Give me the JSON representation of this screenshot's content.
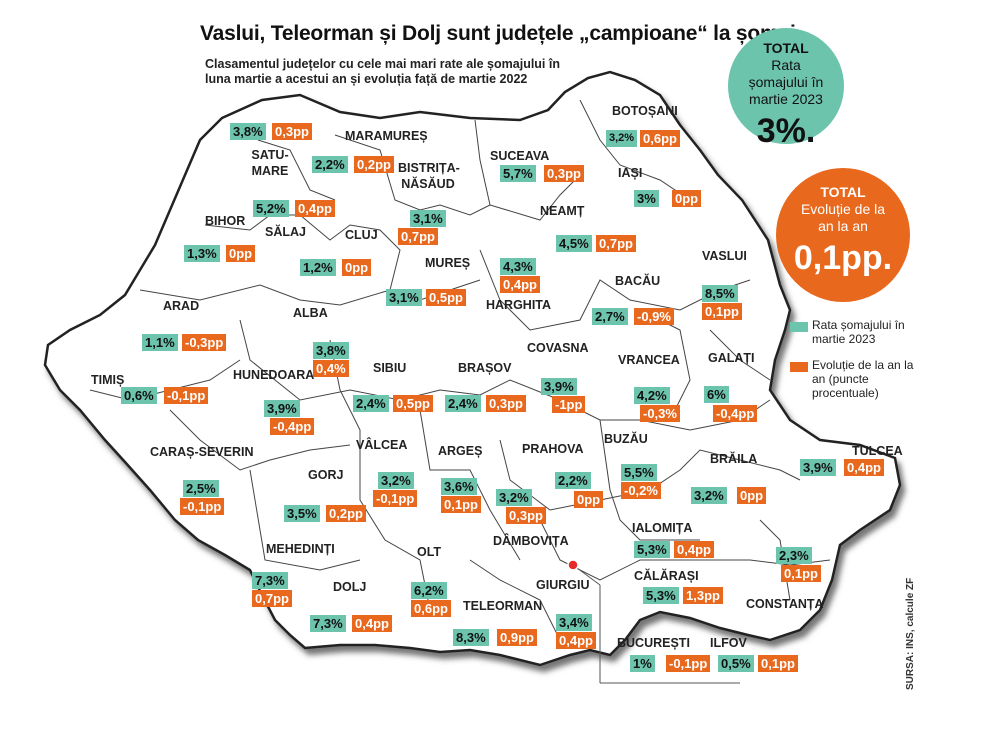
{
  "title": "Vaslui, Teleorman și Dolj sunt județele „campioane“ la șomaj",
  "subtitle": "Clasamentul județelor cu cele mai mari rate ale șomajului în luna martie a acestui an și evoluția față de martie 2022",
  "total_rate": {
    "label": "TOTAL",
    "desc": "Rata șomajului în martie 2023",
    "value": "3%."
  },
  "total_evolution": {
    "label": "TOTAL",
    "desc": "Evoluție de la an la an",
    "value": "0,1pp."
  },
  "legend": {
    "rate": "Rata șomajului în martie 2023",
    "evolution": "Evoluție de la an la an (puncte procentuale)",
    "rate_color": "#6cc4ad",
    "evolution_color": "#e8691e"
  },
  "source": "SURSA: INS, calcule ZF",
  "counties": {
    "satu_mare": {
      "name": "SATU-MARE",
      "rate": "3,8%",
      "change": "0,3pp"
    },
    "maramures": {
      "name": "MARAMUREȘ",
      "rate": "2,2%",
      "change": "0,2pp"
    },
    "botosani": {
      "name": "BOTOȘANI",
      "rate": "3,2%",
      "change": "0,6pp"
    },
    "suceava": {
      "name": "SUCEAVA",
      "rate": "5,7%",
      "change": "0,3pp"
    },
    "bistrita": {
      "name": "BISTRIȚA-NĂSĂUD",
      "rate": "3,1%",
      "change": "0,7pp"
    },
    "iasi": {
      "name": "IAȘI",
      "rate": "3%",
      "change": "0pp"
    },
    "salaj": {
      "name": "SĂLAJ",
      "rate": "5,2%",
      "change": "0,4pp"
    },
    "bihor": {
      "name": "BIHOR",
      "rate": "1,3%",
      "change": "0pp"
    },
    "cluj": {
      "name": "CLUJ",
      "rate": "1,2%",
      "change": "0pp"
    },
    "neamt": {
      "name": "NEAMȚ",
      "rate": "4,5%",
      "change": "0,7pp"
    },
    "mures": {
      "name": "MUREȘ",
      "rate": "3,1%",
      "change": "0,5pp"
    },
    "harghita": {
      "name": "HARGHITA",
      "rate": "4,3%",
      "change": "0,4pp"
    },
    "bacau": {
      "name": "BACĂU",
      "rate": "2,7%",
      "change": "-0,9%"
    },
    "vaslui": {
      "name": "VASLUI",
      "rate": "8,5%",
      "change": "0,1pp"
    },
    "arad": {
      "name": "ARAD",
      "rate": "1,1%",
      "change": "-0,3pp"
    },
    "alba": {
      "name": "ALBA",
      "rate": "3,8%",
      "change": "0,4%"
    },
    "timis": {
      "name": "TIMIȘ",
      "rate": "0,6%",
      "change": "-0,1pp"
    },
    "hunedoara": {
      "name": "HUNEDOARA",
      "rate": "3,9%",
      "change": "-0,4pp"
    },
    "sibiu": {
      "name": "SIBIU",
      "rate": "2,4%",
      "change": "0,5pp"
    },
    "brasov": {
      "name": "BRAȘOV",
      "rate": "2,4%",
      "change": "0,3pp"
    },
    "covasna": {
      "name": "COVASNA",
      "rate": "3,9%",
      "change": "-1pp"
    },
    "vrancea": {
      "name": "VRANCEA",
      "rate": "4,2%",
      "change": "-0,3%"
    },
    "galati": {
      "name": "GALAȚI",
      "rate": "6%",
      "change": "-0,4pp"
    },
    "caras": {
      "name": "CARAȘ-SEVERIN",
      "rate": "2,5%",
      "change": "-0,1pp"
    },
    "valcea": {
      "name": "VÂLCEA",
      "rate": "3,2%",
      "change": "-0,1pp"
    },
    "arges": {
      "name": "ARGEȘ",
      "rate": "3,6%",
      "change": "0,1pp"
    },
    "prahova": {
      "name": "PRAHOVA",
      "rate": "2,2%",
      "change": "0pp"
    },
    "buzau": {
      "name": "BUZĂU",
      "rate": "5,5%",
      "change": "-0,2%"
    },
    "braila": {
      "name": "BRĂILA",
      "rate": "3,2%",
      "change": "0pp"
    },
    "tulcea": {
      "name": "TULCEA",
      "rate": "3,9%",
      "change": "0,4pp"
    },
    "gorj": {
      "name": "GORJ",
      "rate": "3,5%",
      "change": "0,2pp"
    },
    "dambovita": {
      "name": "DÂMBOVIȚA",
      "rate": "3,2%",
      "change": "0,3pp"
    },
    "mehedinti": {
      "name": "MEHEDINȚI",
      "rate": "7,3%",
      "change": "0,7pp"
    },
    "olt": {
      "name": "OLT",
      "rate": "6,2%",
      "change": "0,6pp"
    },
    "dolj": {
      "name": "DOLJ",
      "rate": "7,3%",
      "change": "0,4pp"
    },
    "teleorman": {
      "name": "TELEORMAN",
      "rate": "8,3%",
      "change": "0,9pp"
    },
    "giurgiu": {
      "name": "GIURGIU",
      "rate": "3,4%",
      "change": "0,4pp"
    },
    "ialomita": {
      "name": "IALOMIȚA",
      "rate": "5,3%",
      "change": "0,4pp"
    },
    "calarasi": {
      "name": "CĂLĂRAȘI",
      "rate": "5,3%",
      "change": "1,3pp"
    },
    "constanta": {
      "name": "CONSTANȚA",
      "rate": "2,3%",
      "change": "0,1pp"
    },
    "bucuresti": {
      "name": "BUCUREȘTI",
      "rate": "1%",
      "change": "-0,1pp"
    },
    "ilfov": {
      "name": "ILFOV",
      "rate": "0,5%",
      "change": "0,1pp"
    }
  }
}
